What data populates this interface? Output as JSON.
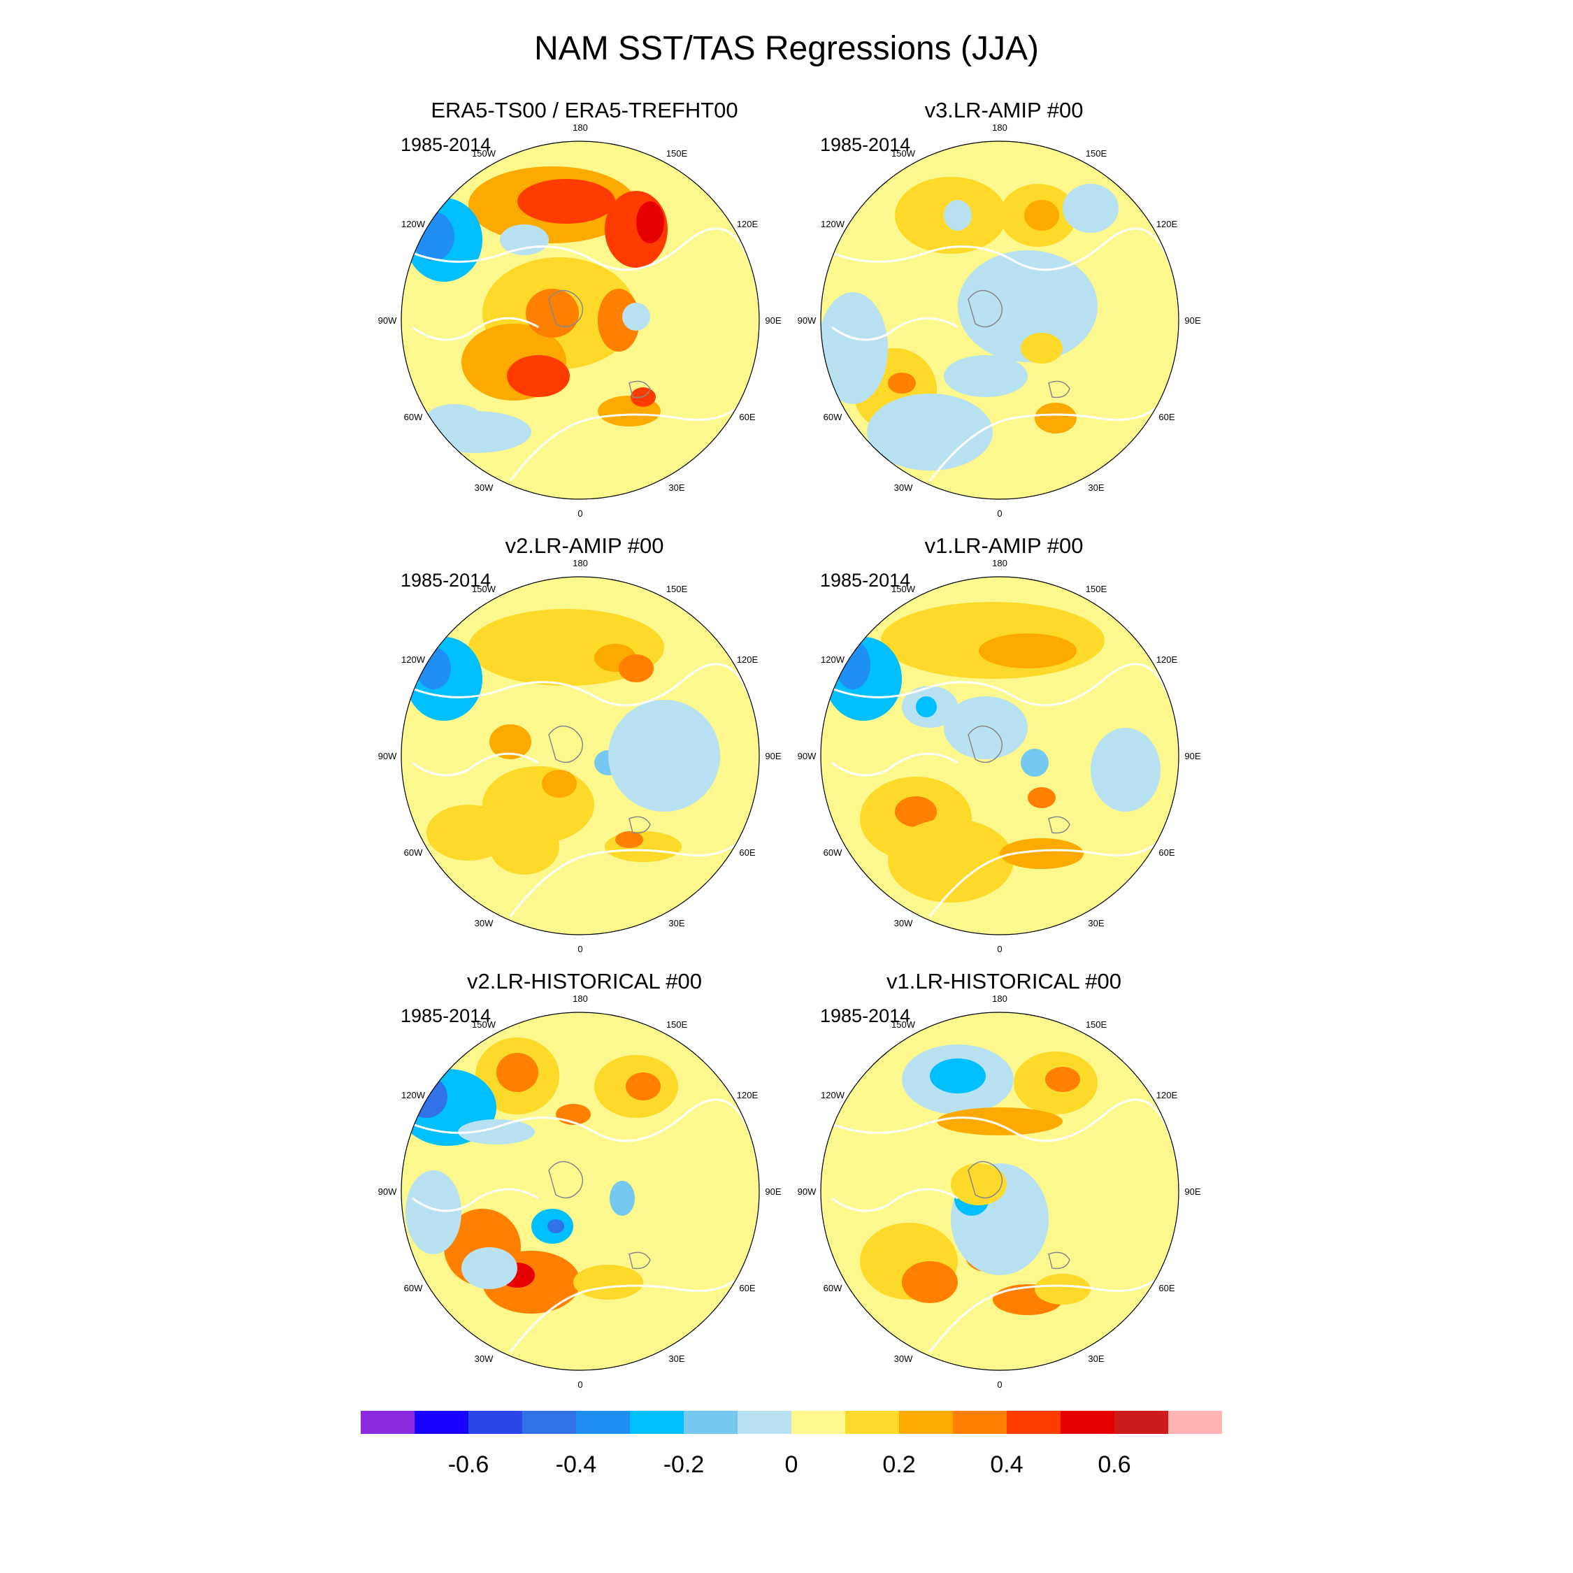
{
  "title": "NAM SST/TAS Regressions (JJA)",
  "panels": [
    {
      "title": "ERA5-TS00 / ERA5-TREFHT00",
      "period": "1985-2014"
    },
    {
      "title": "v3.LR-AMIP  #00",
      "period": "1985-2014"
    },
    {
      "title": "v2.LR-AMIP  #00",
      "period": "1985-2014"
    },
    {
      "title": "v1.LR-AMIP  #00",
      "period": "1985-2014"
    },
    {
      "title": "v2.LR-HISTORICAL  #00",
      "period": "1985-2014"
    },
    {
      "title": "v1.LR-HISTORICAL  #00",
      "period": "1985-2014"
    }
  ],
  "longitude_labels": [
    "180",
    "150E",
    "120E",
    "90E",
    "60E",
    "30E",
    "0",
    "30W",
    "60W",
    "90W",
    "120W",
    "150W"
  ],
  "colorbar": {
    "colors": [
      "#8a2be2",
      "#1a00ff",
      "#2a48e8",
      "#3272e8",
      "#1f8ff5",
      "#00bfff",
      "#75c8f0",
      "#b8e2f2",
      "#fdf88d",
      "#fdd92a",
      "#fdaa00",
      "#ff7f00",
      "#ff3c00",
      "#e60000",
      "#cc1c1c",
      "#ffb3b3"
    ],
    "tick_labels": [
      "-0.6",
      "-0.4",
      "-0.2",
      "0",
      "0.2",
      "0.4",
      "0.6"
    ]
  },
  "chart_data": {
    "type": "map",
    "projection": "north polar stereographic",
    "variable": "NAM SST/TAS regression",
    "season": "JJA",
    "contour_levels": [
      -0.7,
      -0.6,
      -0.5,
      -0.4,
      -0.3,
      -0.2,
      -0.1,
      0,
      0.1,
      0.2,
      0.3,
      0.4,
      0.5,
      0.6,
      0.7
    ]
  }
}
